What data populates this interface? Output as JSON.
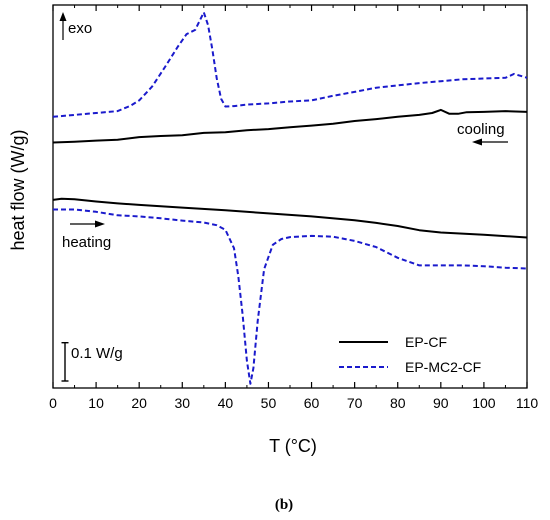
{
  "chart_data": {
    "type": "line",
    "xlabel": "T (°C)",
    "ylabel": "heat flow (W/g)",
    "xlim": [
      0,
      110
    ],
    "ylim": [
      0,
      1
    ],
    "x_ticks": [
      0,
      10,
      20,
      30,
      40,
      50,
      60,
      70,
      80,
      90,
      100,
      110
    ],
    "y_tick_labels_shown": false,
    "grid": false,
    "legend_position": "bottom-right",
    "series": [
      {
        "name": "EP-CF",
        "segment": "cooling",
        "color": "#000000",
        "style": "solid",
        "x": [
          0,
          5,
          10,
          15,
          20,
          25,
          30,
          35,
          40,
          45,
          50,
          55,
          60,
          65,
          70,
          75,
          80,
          85,
          88,
          90,
          92,
          94,
          96,
          100,
          105,
          110
        ],
        "y": [
          0.641,
          0.643,
          0.646,
          0.648,
          0.655,
          0.658,
          0.66,
          0.666,
          0.668,
          0.673,
          0.676,
          0.681,
          0.685,
          0.69,
          0.697,
          0.702,
          0.708,
          0.713,
          0.718,
          0.726,
          0.716,
          0.716,
          0.72,
          0.721,
          0.723,
          0.721
        ]
      },
      {
        "name": "EP-MC2-CF",
        "segment": "cooling",
        "color": "#1a1acc",
        "style": "dashed",
        "x": [
          0,
          5,
          10,
          15,
          18,
          20,
          23,
          26,
          29,
          31,
          33,
          35,
          36,
          37,
          38,
          39,
          40,
          42,
          45,
          50,
          55,
          60,
          65,
          70,
          75,
          80,
          85,
          90,
          95,
          100,
          105,
          107,
          110
        ],
        "y": [
          0.708,
          0.713,
          0.718,
          0.723,
          0.737,
          0.751,
          0.787,
          0.838,
          0.892,
          0.924,
          0.935,
          0.981,
          0.947,
          0.883,
          0.809,
          0.755,
          0.735,
          0.736,
          0.74,
          0.743,
          0.748,
          0.751,
          0.763,
          0.773,
          0.784,
          0.79,
          0.796,
          0.801,
          0.806,
          0.808,
          0.81,
          0.82,
          0.81
        ]
      },
      {
        "name": "EP-CF",
        "segment": "heating",
        "color": "#000000",
        "style": "solid",
        "x": [
          0,
          2,
          5,
          10,
          15,
          20,
          30,
          40,
          50,
          60,
          70,
          75,
          80,
          85,
          90,
          100,
          110
        ],
        "y": [
          0.491,
          0.494,
          0.493,
          0.487,
          0.482,
          0.478,
          0.471,
          0.464,
          0.456,
          0.448,
          0.438,
          0.431,
          0.423,
          0.412,
          0.406,
          0.4,
          0.393
        ]
      },
      {
        "name": "EP-MC2-CF",
        "segment": "heating",
        "color": "#1a1acc",
        "style": "dashed",
        "x": [
          0,
          5,
          10,
          15,
          20,
          25,
          30,
          35,
          38,
          40,
          42,
          43,
          44,
          45,
          45.8,
          46.5,
          47.5,
          49,
          51,
          53,
          55,
          60,
          65,
          70,
          75,
          80,
          85,
          90,
          95,
          100,
          105,
          110
        ],
        "y": [
          0.466,
          0.466,
          0.46,
          0.451,
          0.448,
          0.443,
          0.437,
          0.432,
          0.425,
          0.413,
          0.365,
          0.292,
          0.192,
          0.071,
          0.011,
          0.052,
          0.175,
          0.31,
          0.374,
          0.389,
          0.394,
          0.397,
          0.395,
          0.384,
          0.368,
          0.34,
          0.32,
          0.32,
          0.32,
          0.318,
          0.314,
          0.312
        ]
      }
    ],
    "annotations": {
      "exo": "exo",
      "cooling": "cooling",
      "heating": "heating",
      "scale_bar": "0.1 W/g",
      "scale_bar_value": 0.1
    },
    "caption": "(b)"
  }
}
